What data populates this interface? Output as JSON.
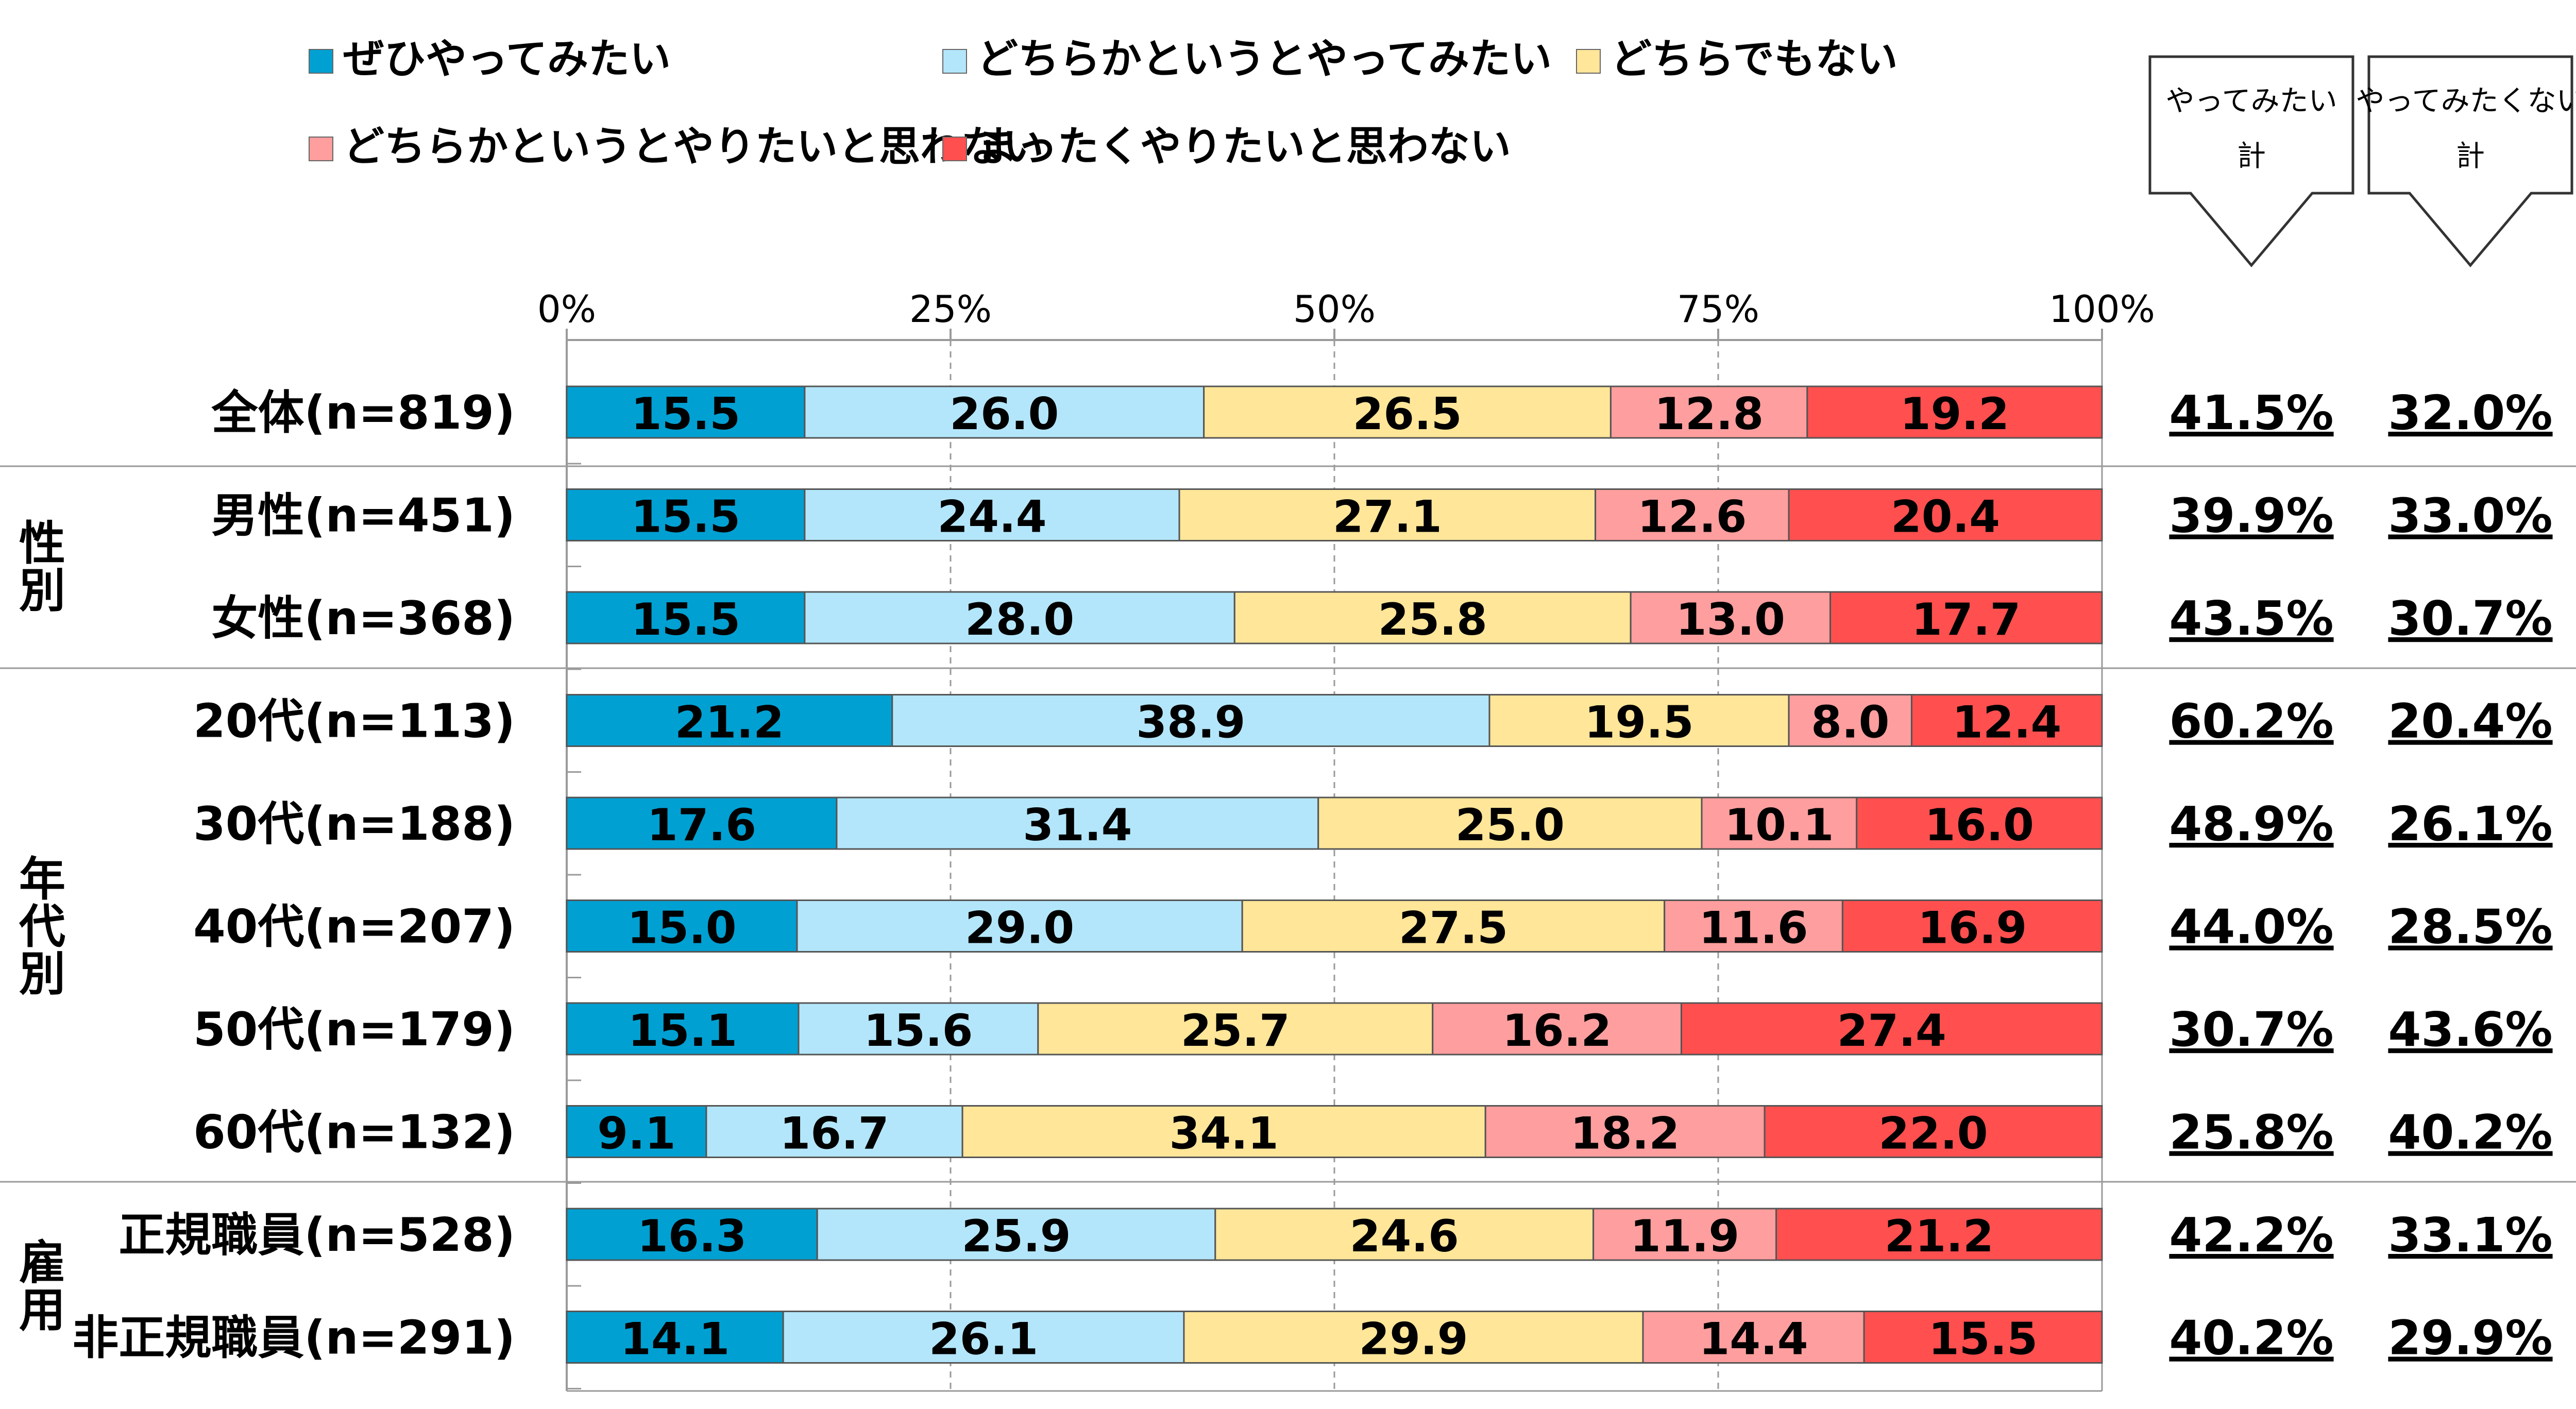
{
  "chart_data": {
    "type": "bar",
    "orientation": "horizontal",
    "stacked": "percent",
    "x_ticks": [
      "0%",
      "25%",
      "50%",
      "75%",
      "100%"
    ],
    "xlim": [
      0,
      100
    ],
    "grid": "vertical dashed",
    "legend_position": "top-left",
    "series": [
      {
        "name": "ぜひやってみたい",
        "color": "#00A0D2"
      },
      {
        "name": "どちらかというとやってみたい",
        "color": "#B3E6FA"
      },
      {
        "name": "どちらでもない",
        "color": "#FFE699"
      },
      {
        "name": "どちらかというとやりたいと思わない",
        "color": "#FF9E9E"
      },
      {
        "name": "まったくやりたいと思わない",
        "color": "#FF4F4F"
      }
    ],
    "rows": [
      {
        "label": "全体(n=819)",
        "values": [
          15.5,
          26.0,
          26.5,
          12.8,
          19.2
        ],
        "want_total": "41.5%",
        "not_want_total": "32.0%"
      },
      {
        "label": "男性(n=451)",
        "values": [
          15.5,
          24.4,
          27.1,
          12.6,
          20.4
        ],
        "want_total": "39.9%",
        "not_want_total": "33.0%"
      },
      {
        "label": "女性(n=368)",
        "values": [
          15.5,
          28.0,
          25.8,
          13.0,
          17.7
        ],
        "want_total": "43.5%",
        "not_want_total": "30.7%"
      },
      {
        "label": "20代(n=113)",
        "values": [
          21.2,
          38.9,
          19.5,
          8.0,
          12.4
        ],
        "want_total": "60.2%",
        "not_want_total": "20.4%"
      },
      {
        "label": "30代(n=188)",
        "values": [
          17.6,
          31.4,
          25.0,
          10.1,
          16.0
        ],
        "want_total": "48.9%",
        "not_want_total": "26.1%"
      },
      {
        "label": "40代(n=207)",
        "values": [
          15.0,
          29.0,
          27.5,
          11.6,
          16.9
        ],
        "want_total": "44.0%",
        "not_want_total": "28.5%"
      },
      {
        "label": "50代(n=179)",
        "values": [
          15.1,
          15.6,
          25.7,
          16.2,
          27.4
        ],
        "want_total": "30.7%",
        "not_want_total": "43.6%"
      },
      {
        "label": "60代(n=132)",
        "values": [
          9.1,
          16.7,
          34.1,
          18.2,
          22.0
        ],
        "want_total": "25.8%",
        "not_want_total": "40.2%"
      },
      {
        "label": "正規職員(n=528)",
        "values": [
          16.3,
          25.9,
          24.6,
          11.9,
          21.2
        ],
        "want_total": "42.2%",
        "not_want_total": "33.1%"
      },
      {
        "label": "非正規職員(n=291)",
        "values": [
          14.1,
          26.1,
          29.9,
          14.4,
          15.5
        ],
        "want_total": "40.2%",
        "not_want_total": "29.9%"
      }
    ],
    "groups": [
      {
        "label": "性別",
        "rows": [
          1,
          2
        ]
      },
      {
        "label": "年代別",
        "rows": [
          3,
          4,
          5,
          6,
          7
        ]
      },
      {
        "label": "雇用",
        "rows": [
          8,
          9
        ]
      }
    ],
    "total_boxes": [
      {
        "line1": "やってみたい",
        "line2": "計"
      },
      {
        "line1": "やってみたくない",
        "line2": "計"
      }
    ]
  }
}
